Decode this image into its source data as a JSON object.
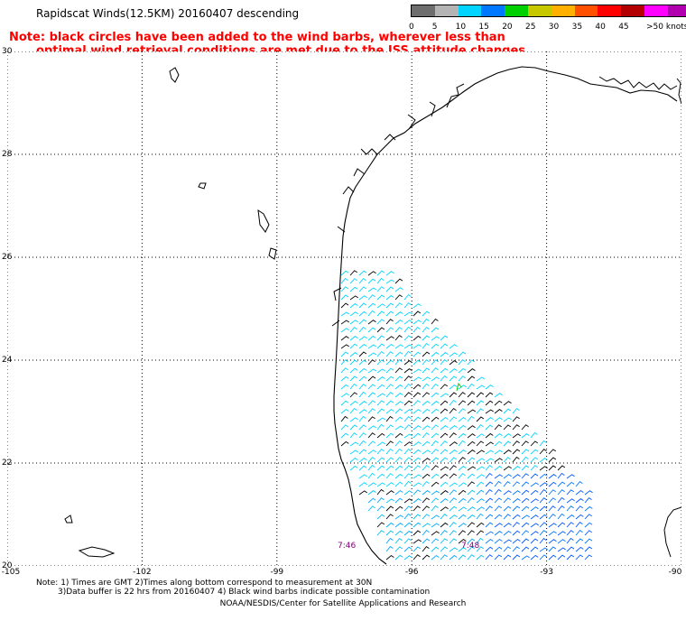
{
  "title": "Rapidscat Winds(12.5KM) 20160407 descending",
  "note": {
    "line1": "Note: black circles have been added to the wind barbs, wherever less than",
    "line2": "optimal wind retrieval conditions are met due to the ISS attitude changes."
  },
  "legend": {
    "colors": [
      "#6e6e6e",
      "#b4b4b4",
      "#00d4ff",
      "#0078ff",
      "#00d000",
      "#c8c800",
      "#ffb000",
      "#ff5000",
      "#ff0000",
      "#b40000",
      "#ff00ff",
      "#b000b0",
      "#500050"
    ],
    "labels": [
      "0",
      "5",
      "10",
      "15",
      "20",
      "25",
      "30",
      "35",
      "40",
      "45",
      ">50 knots"
    ]
  },
  "axes": {
    "lat_labels": [
      "30",
      "28",
      "26",
      "24",
      "22",
      "20"
    ],
    "lon_labels": [
      "-105",
      "-102",
      "-99",
      "-96",
      "-93",
      "-90"
    ]
  },
  "time_labels": [
    "7:46",
    "7:48"
  ],
  "footer": {
    "line1": "Note: 1) Times are GMT 2)Times along bottom correspond to measurement at 30N",
    "line2": "3)Data buffer is 22 hrs from 20160407 4) Black wind barbs indicate possible contamination",
    "line3": "NOAA/NESDIS/Center for Satellite Applications and Research"
  }
}
